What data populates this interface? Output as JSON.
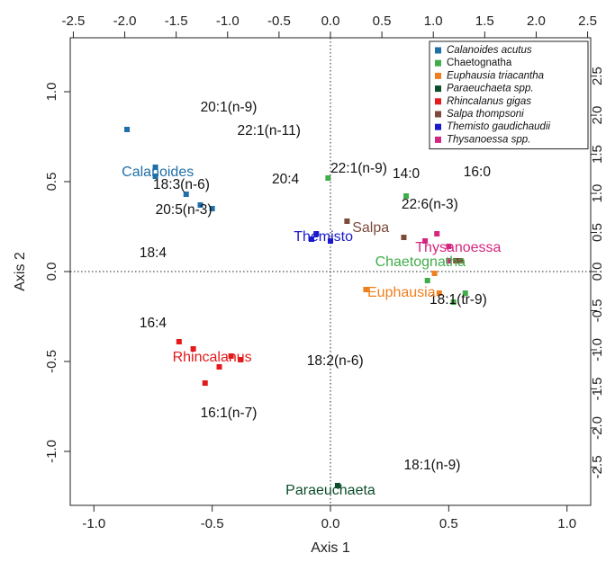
{
  "chart_data": {
    "type": "scatter",
    "xlabel": "Axis 1",
    "ylabel": "Axis 2",
    "xlim": [
      -1.1,
      1.1
    ],
    "ylim": [
      -1.3,
      1.3
    ],
    "x_ticks": [
      -1.0,
      -0.5,
      0.0,
      0.5,
      1.0
    ],
    "y_ticks": [
      -1.0,
      -0.5,
      0.0,
      0.5,
      1.0
    ],
    "x_tick_labels": [
      "-1.0",
      "-0.5",
      "0.0",
      "0.5",
      "1.0"
    ],
    "y_tick_labels": [
      "-1.0",
      "-0.5",
      "0.0",
      "0.5",
      "1.0"
    ],
    "top_ticks": [
      -2.5,
      -2.0,
      -1.5,
      -1.0,
      -0.5,
      0.0,
      0.5,
      1.0,
      1.5,
      2.0,
      2.5
    ],
    "top_tick_labels": [
      "-2.5",
      "-2.0",
      "-1.5",
      "-1.0",
      "-0.5",
      "0.0",
      "0.5",
      "1.0",
      "1.5",
      "2.0",
      "2.5"
    ],
    "right_ticks": [
      -2.5,
      -2.0,
      -1.5,
      -1.0,
      -0.5,
      0.0,
      0.5,
      1.0,
      1.5,
      2.0,
      2.5
    ],
    "right_tick_labels": [
      "-2.5",
      "-2.0",
      "-1.5",
      "-1.0",
      "-0.5",
      "0.0",
      "0.5",
      "1.0",
      "1.5",
      "2.0",
      "2.5"
    ],
    "secondary_scale": 2.3,
    "reference_lines": {
      "x": 0,
      "y": 0,
      "style": "dotted"
    },
    "legend": {
      "placement": "top-right",
      "entries": [
        {
          "name": "Calanoides acutus",
          "color": "#1f6fa8",
          "italic": true
        },
        {
          "name": "Chaetognatha",
          "color": "#3fae49",
          "italic": false
        },
        {
          "name": "Euphausia triacantha",
          "color": "#f07f1f",
          "italic": true
        },
        {
          "name": "Paraeuchaeta spp.",
          "color": "#0d4d2a",
          "italic": true
        },
        {
          "name": "Rhincalanus gigas",
          "color": "#e41a1c",
          "italic": true
        },
        {
          "name": "Salpa thompsoni",
          "color": "#7b4a3a",
          "italic": true
        },
        {
          "name": "Themisto gaudichaudii",
          "color": "#1a1acc",
          "italic": true
        },
        {
          "name": "Thysanoessa spp.",
          "color": "#d4267f",
          "italic": true
        }
      ]
    },
    "series": [
      {
        "name": "Calanoides acutus",
        "color": "#1f6fa8",
        "points": [
          [
            -0.86,
            0.79
          ],
          [
            -0.74,
            0.58
          ],
          [
            -0.74,
            0.53
          ],
          [
            -0.61,
            0.43
          ],
          [
            -0.55,
            0.37
          ],
          [
            -0.5,
            0.35
          ]
        ]
      },
      {
        "name": "Chaetognatha",
        "color": "#3fae49",
        "points": [
          [
            -0.01,
            0.52
          ],
          [
            0.32,
            0.42
          ],
          [
            0.41,
            -0.05
          ],
          [
            0.52,
            -0.17
          ],
          [
            0.57,
            -0.12
          ]
        ]
      },
      {
        "name": "Euphausia triacantha",
        "color": "#f07f1f",
        "points": [
          [
            0.15,
            -0.1
          ],
          [
            0.44,
            -0.01
          ],
          [
            0.46,
            -0.12
          ]
        ]
      },
      {
        "name": "Paraeuchaeta spp.",
        "color": "#0d4d2a",
        "points": [
          [
            0.03,
            -1.19
          ]
        ]
      },
      {
        "name": "Rhincalanus gigas",
        "color": "#e41a1c",
        "points": [
          [
            -0.64,
            -0.39
          ],
          [
            -0.58,
            -0.43
          ],
          [
            -0.47,
            -0.53
          ],
          [
            -0.42,
            -0.47
          ],
          [
            -0.38,
            -0.49
          ],
          [
            -0.53,
            -0.62
          ]
        ]
      },
      {
        "name": "Salpa thompsoni",
        "color": "#7b4a3a",
        "points": [
          [
            0.07,
            0.28
          ],
          [
            0.31,
            0.19
          ],
          [
            0.53,
            0.06
          ],
          [
            0.55,
            0.06
          ]
        ]
      },
      {
        "name": "Themisto gaudichaudii",
        "color": "#1a1acc",
        "points": [
          [
            -0.08,
            0.18
          ],
          [
            -0.06,
            0.21
          ],
          [
            0.0,
            0.17
          ]
        ]
      },
      {
        "name": "Thysanoessa spp.",
        "color": "#d4267f",
        "points": [
          [
            0.4,
            0.17
          ],
          [
            0.45,
            0.21
          ],
          [
            0.5,
            0.14
          ],
          [
            0.5,
            0.06
          ]
        ]
      }
    ],
    "group_labels": [
      {
        "text": "Calanoides",
        "x": -0.73,
        "y": 0.55,
        "color": "#1f6fa8"
      },
      {
        "text": "Salpa",
        "x": 0.17,
        "y": 0.24,
        "color": "#7b4a3a"
      },
      {
        "text": "Themisto",
        "x": -0.03,
        "y": 0.19,
        "color": "#1a1acc"
      },
      {
        "text": "Thysanoessa",
        "x": 0.54,
        "y": 0.13,
        "color": "#d4267f"
      },
      {
        "text": "Chaetognatha",
        "x": 0.38,
        "y": 0.05,
        "color": "#3fae49"
      },
      {
        "text": "Euphausia",
        "x": 0.3,
        "y": -0.12,
        "color": "#f07f1f"
      },
      {
        "text": "Rhincalanus",
        "x": -0.5,
        "y": -0.48,
        "color": "#e41a1c"
      },
      {
        "text": "Paraeuchaeta",
        "x": 0.0,
        "y": -1.22,
        "color": "#0d4d2a"
      }
    ],
    "variable_labels": [
      {
        "text": "20:1(n-9)",
        "x": -0.43,
        "y": 0.91
      },
      {
        "text": "22:1(n-11)",
        "x": -0.26,
        "y": 0.78
      },
      {
        "text": "18:3(n-6)",
        "x": -0.63,
        "y": 0.48
      },
      {
        "text": "20:4",
        "x": -0.19,
        "y": 0.51
      },
      {
        "text": "20:5(n-3)",
        "x": -0.62,
        "y": 0.34
      },
      {
        "text": "22:1(n-9)",
        "x": 0.12,
        "y": 0.57
      },
      {
        "text": "14:0",
        "x": 0.32,
        "y": 0.54
      },
      {
        "text": "22:6(n-3)",
        "x": 0.42,
        "y": 0.37
      },
      {
        "text": "16:0",
        "x": 0.62,
        "y": 0.55
      },
      {
        "text": "18:4",
        "x": -0.75,
        "y": 0.1
      },
      {
        "text": "18:1(tr-9)",
        "x": 0.54,
        "y": -0.16
      },
      {
        "text": "16:4",
        "x": -0.75,
        "y": -0.29
      },
      {
        "text": "18:2(n-6)",
        "x": 0.02,
        "y": -0.5
      },
      {
        "text": "16:1(n-7)",
        "x": -0.43,
        "y": -0.79
      },
      {
        "text": "18:1(n-9)",
        "x": 0.43,
        "y": -1.08
      }
    ]
  }
}
